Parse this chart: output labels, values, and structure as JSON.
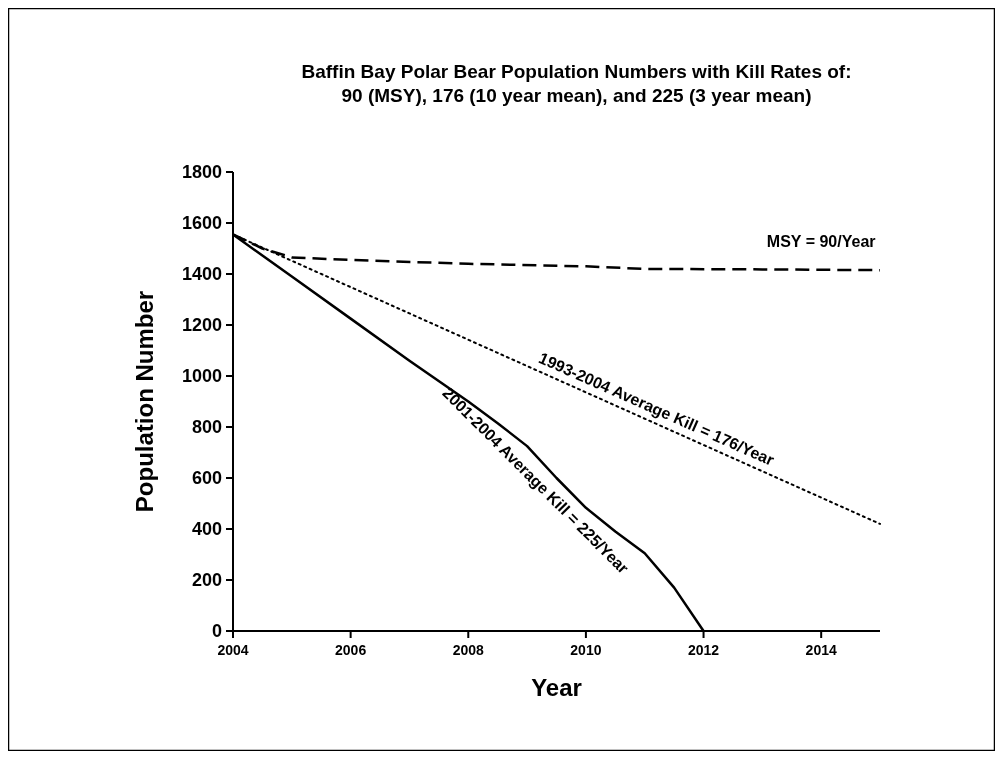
{
  "chart_data": {
    "type": "line",
    "title": "Baffin Bay Polar Bear Population Numbers with Kill Rates of:\n90 (MSY), 176 (10 year mean), and 225 (3 year mean)",
    "xlabel": "Year",
    "ylabel": "Population Number",
    "series": [
      {
        "name": "MSY = 90/Year",
        "color": "#000000",
        "line_style": "dashed",
        "x": [
          2004,
          2004.5,
          2005,
          2006,
          2008,
          2010,
          2011,
          2013,
          2015
        ],
        "values": [
          1555,
          1500,
          1465,
          1455,
          1440,
          1430,
          1420,
          1418,
          1415
        ]
      },
      {
        "name": "1993-2004 Average Kill = 176/Year",
        "color": "#000000",
        "line_style": "dotted",
        "x": [
          2004,
          2015
        ],
        "values": [
          1555,
          420
        ]
      },
      {
        "name": "2001-2004 Average Kill = 225/Year",
        "color": "#000000",
        "line_style": "solid",
        "x": [
          2004,
          2005,
          2006,
          2007,
          2008,
          2008.5,
          2009,
          2009.5,
          2010,
          2010.5,
          2011,
          2011.5,
          2012
        ],
        "values": [
          1555,
          1390,
          1225,
          1060,
          900,
          815,
          725,
          600,
          483,
          390,
          305,
          170,
          0
        ]
      }
    ],
    "xlim": [
      2004,
      2015
    ],
    "xticks": [
      2004,
      2006,
      2008,
      2010,
      2012,
      2014
    ],
    "ylim": [
      0,
      1800
    ],
    "yticks": [
      0,
      200,
      400,
      600,
      800,
      1000,
      1200,
      1400,
      1600,
      1800
    ],
    "grid": false,
    "marker": "none"
  }
}
